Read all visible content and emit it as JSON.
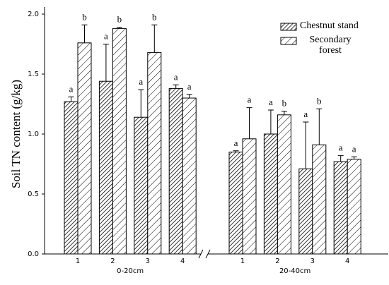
{
  "chart_data": {
    "type": "bar",
    "y_label": "Soil TN content (g/kg)",
    "categories": [
      "1",
      "2",
      "3",
      "4",
      "1",
      "2",
      "3",
      "4"
    ],
    "category_groups": [
      "0-20cm",
      "20-40cm"
    ],
    "series": [
      {
        "name": "Chestnut stand",
        "color": "#000000",
        "values": [
          1.27,
          1.44,
          1.14,
          1.38,
          0.85,
          1.0,
          0.71,
          0.77
        ],
        "errors": [
          0.04,
          0.31,
          0.23,
          0.03,
          0.01,
          0.2,
          0.39,
          0.05
        ],
        "labels": [
          "a",
          "a",
          "a",
          "a",
          "a",
          "a",
          "a",
          "a"
        ]
      },
      {
        "name": "Secondary forest",
        "color": "#000000",
        "values": [
          1.76,
          1.88,
          1.68,
          1.3,
          0.96,
          1.16,
          0.91,
          0.79
        ],
        "errors": [
          0.15,
          0.01,
          0.23,
          0.03,
          0.26,
          0.03,
          0.3,
          0.02
        ],
        "labels": [
          "b",
          "b",
          "b",
          "a",
          "a",
          "b",
          "b",
          "a"
        ]
      }
    ],
    "ylim": [
      0,
      2.0
    ],
    "yticks": [
      {
        "value": 0,
        "label": "0.0"
      },
      0.5,
      {
        "value": 1,
        "label": "1.0"
      },
      1.5,
      {
        "value": 2,
        "label": "2.0"
      }
    ],
    "legend": "upper right"
  }
}
